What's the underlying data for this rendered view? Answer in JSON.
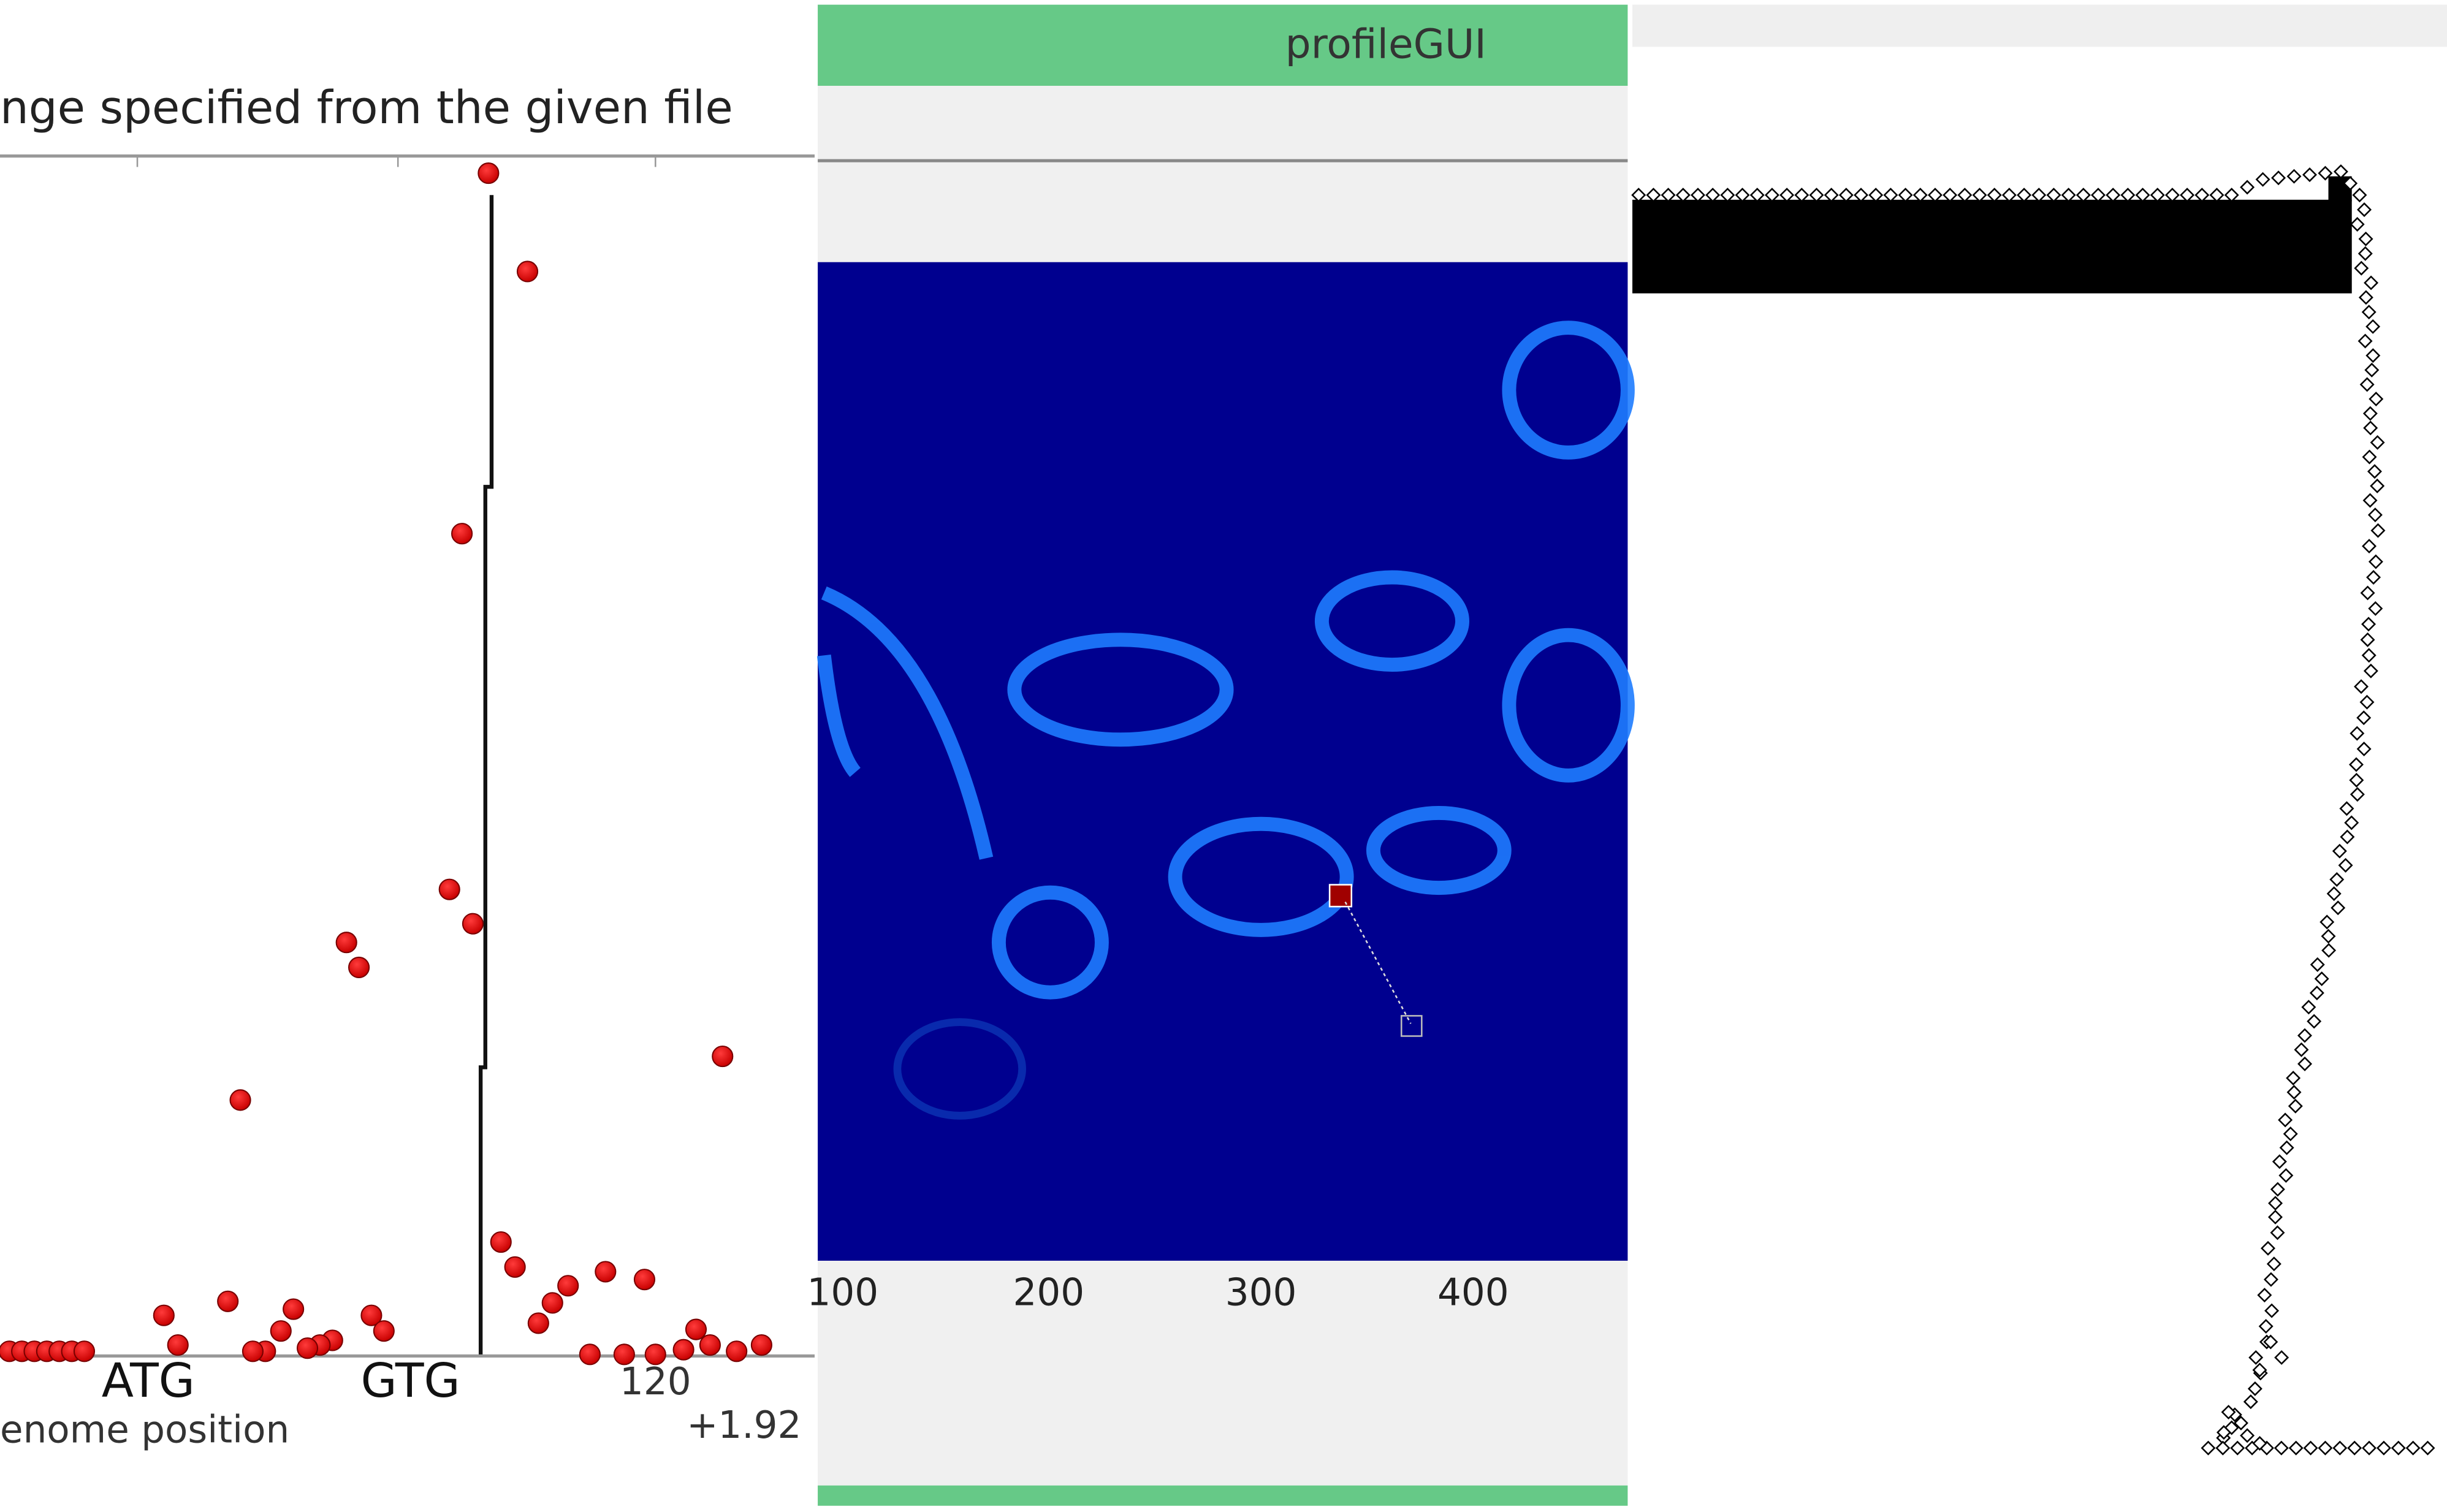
{
  "left_panel": {
    "title": "nge specified from the given file",
    "tick_labels": [
      "ATG",
      "GTG",
      "120"
    ],
    "axis_label": "enome position",
    "offset": "+1.92"
  },
  "middle_panel": {
    "window_title": "profileGUI",
    "x_tick_labels": [
      "100",
      "200",
      "300",
      "400"
    ]
  }
}
